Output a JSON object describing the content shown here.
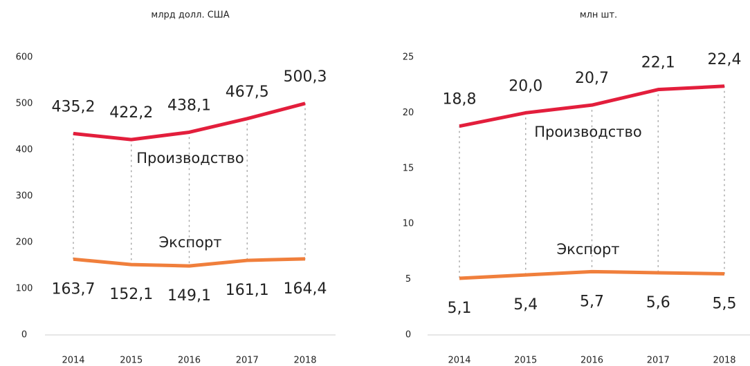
{
  "chart_data": [
    {
      "type": "line",
      "title": "млрд долл. США",
      "categories": [
        "2014",
        "2015",
        "2016",
        "2017",
        "2018"
      ],
      "series": [
        {
          "name": "Производство",
          "color": "#e31e3c",
          "values": [
            435.2,
            422.2,
            438.1,
            467.5,
            500.3
          ],
          "value_labels": [
            "435,2",
            "422,2",
            "438,1",
            "467,5",
            "500,3"
          ]
        },
        {
          "name": "Экспорт",
          "color": "#f07f3c",
          "values": [
            163.7,
            152.1,
            149.1,
            161.1,
            164.4
          ],
          "value_labels": [
            "163,7",
            "152,1",
            "149,1",
            "161,1",
            "164,4"
          ]
        }
      ],
      "ylim": [
        0,
        600
      ],
      "yticks": [
        0,
        100,
        200,
        300,
        400,
        500,
        600
      ]
    },
    {
      "type": "line",
      "title": "млн шт.",
      "categories": [
        "2014",
        "2015",
        "2016",
        "2017",
        "2018"
      ],
      "series": [
        {
          "name": "Производство",
          "color": "#e31e3c",
          "values": [
            18.8,
            20,
            20.7,
            22.1,
            22.4
          ],
          "value_labels": [
            "18,8",
            "20,0",
            "20,7",
            "22,1",
            "22,4"
          ]
        },
        {
          "name": "Экспорт",
          "color": "#f07f3c",
          "values": [
            5.1,
            5.4,
            5.7,
            5.6,
            5.5
          ],
          "value_labels": [
            "5,1",
            "5,4",
            "5,7",
            "5,6",
            "5,5"
          ]
        }
      ],
      "ylim": [
        0,
        25
      ],
      "yticks": [
        0,
        5,
        10,
        15,
        20,
        25
      ]
    }
  ]
}
